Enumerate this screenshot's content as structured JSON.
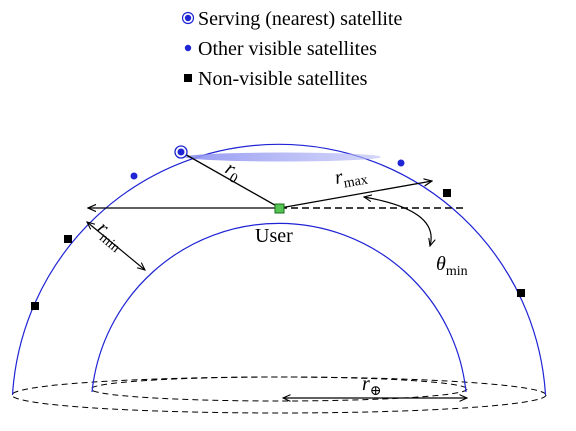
{
  "legend": [
    {
      "label": "Serving (nearest) satellite"
    },
    {
      "label": "Other visible satellites"
    },
    {
      "label": "Non-visible satellites"
    }
  ],
  "labels": {
    "user": "User",
    "r0": {
      "main": "r",
      "sub": "0"
    },
    "rmax": {
      "main": "r",
      "sub": "max"
    },
    "rmin": {
      "main": "r",
      "sub": "min"
    },
    "theta": {
      "main": "θ",
      "sub": "min"
    },
    "rearth": {
      "main": "r",
      "sub": "⊕"
    }
  }
}
